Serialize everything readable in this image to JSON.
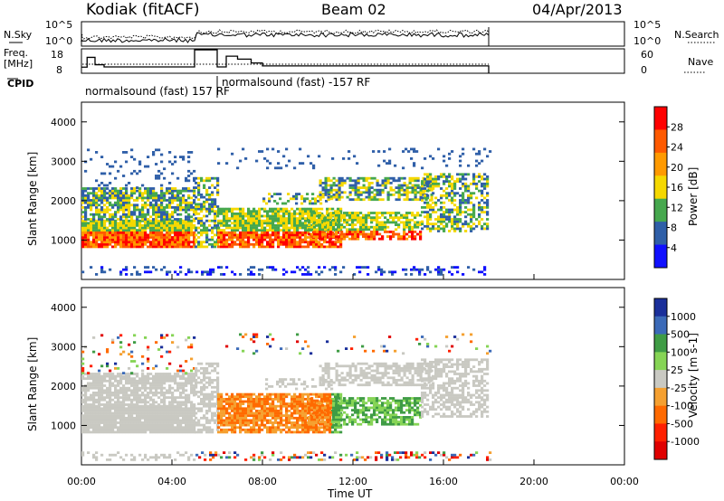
{
  "header": {
    "station": "Kodiak (fitACF)",
    "beam": "Beam 02",
    "date": "04/Apr/2013"
  },
  "top_panels": {
    "nsky_label": "N.Sky",
    "nsky_ticks": [
      "10^5",
      "10^0"
    ],
    "nsearch_label": "N.Search",
    "nsearch_ticks": [
      "10^5",
      "10^0"
    ],
    "freq_label": "Freq.",
    "freq_unit": "[MHz]",
    "freq_ticks": [
      "18",
      "8"
    ],
    "nave_label": "Nave",
    "nave_ticks": [
      "60",
      "0"
    ],
    "cpid_label": "CPID",
    "cpid_segments": [
      {
        "text": "normalsound (fast) 157 RF",
        "start_hr": 0.0,
        "end_hr": 6.0
      },
      {
        "text": "normalsound (fast) -157 RF",
        "start_hr": 6.0,
        "end_hr": 18.0
      }
    ],
    "freq_steps": [
      {
        "start": 0.0,
        "end": 0.25,
        "mhz": 10.5
      },
      {
        "start": 0.25,
        "end": 0.6,
        "mhz": 14.5
      },
      {
        "start": 0.6,
        "end": 1.0,
        "mhz": 11.5
      },
      {
        "start": 1.0,
        "end": 5.0,
        "mhz": 10.6
      },
      {
        "start": 5.0,
        "end": 6.0,
        "mhz": 17.6
      },
      {
        "start": 6.0,
        "end": 6.4,
        "mhz": 10.6
      },
      {
        "start": 6.4,
        "end": 6.9,
        "mhz": 15.0
      },
      {
        "start": 6.9,
        "end": 7.5,
        "mhz": 13.8
      },
      {
        "start": 7.5,
        "end": 8.0,
        "mhz": 12.2
      },
      {
        "start": 8.0,
        "end": 18.0,
        "mhz": 11.0
      }
    ]
  },
  "chart_data": [
    {
      "type": "heatmap",
      "title": "Power",
      "ylabel": "Slant Range [km]",
      "xlabel": "Time UT",
      "xlim": [
        "00:00",
        "24:00"
      ],
      "x_ticks": [
        "00:00",
        "04:00",
        "08:00",
        "12:00",
        "16:00",
        "20:00",
        "00:00"
      ],
      "ylim": [
        0,
        4500
      ],
      "y_ticks": [
        "1000",
        "2000",
        "3000",
        "4000"
      ],
      "colorbar_label": "Power [dB]",
      "colorbar_ticks": [
        "28",
        "24",
        "20",
        "16",
        "12",
        "8",
        "4"
      ],
      "colors": [
        "#ff0000",
        "#ff5a00",
        "#ff9a00",
        "#f5d800",
        "#46a84e",
        "#2f5fa8",
        "#1010ff"
      ],
      "data_end_hr": 18.0
    },
    {
      "type": "heatmap",
      "title": "Velocity",
      "ylabel": "Slant Range [km]",
      "xlabel": "Time UT",
      "xlim": [
        "00:00",
        "24:00"
      ],
      "x_ticks": [
        "00:00",
        "04:00",
        "08:00",
        "12:00",
        "16:00",
        "20:00",
        "00:00"
      ],
      "ylim": [
        0,
        4500
      ],
      "y_ticks": [
        "1000",
        "2000",
        "3000",
        "4000"
      ],
      "colorbar_label": "Velocity [m s-1]",
      "colorbar_ticks": [
        "1000",
        "500",
        "100",
        "25",
        "-25",
        "-100",
        "-500",
        "-1000"
      ],
      "colors": [
        "#1a2f9a",
        "#3b6ab8",
        "#3f9c45",
        "#86d455",
        "#c9c9c2",
        "#f5a030",
        "#ff6a00",
        "#ff2000",
        "#e00000"
      ],
      "data_end_hr": 18.0
    }
  ],
  "x_axis": {
    "label": "Time UT",
    "ticks": [
      "00:00",
      "04:00",
      "08:00",
      "12:00",
      "16:00",
      "20:00",
      "00:00"
    ]
  },
  "legend_lines": {
    "nsearch_style": "dotted",
    "nave_style": "dotted"
  }
}
